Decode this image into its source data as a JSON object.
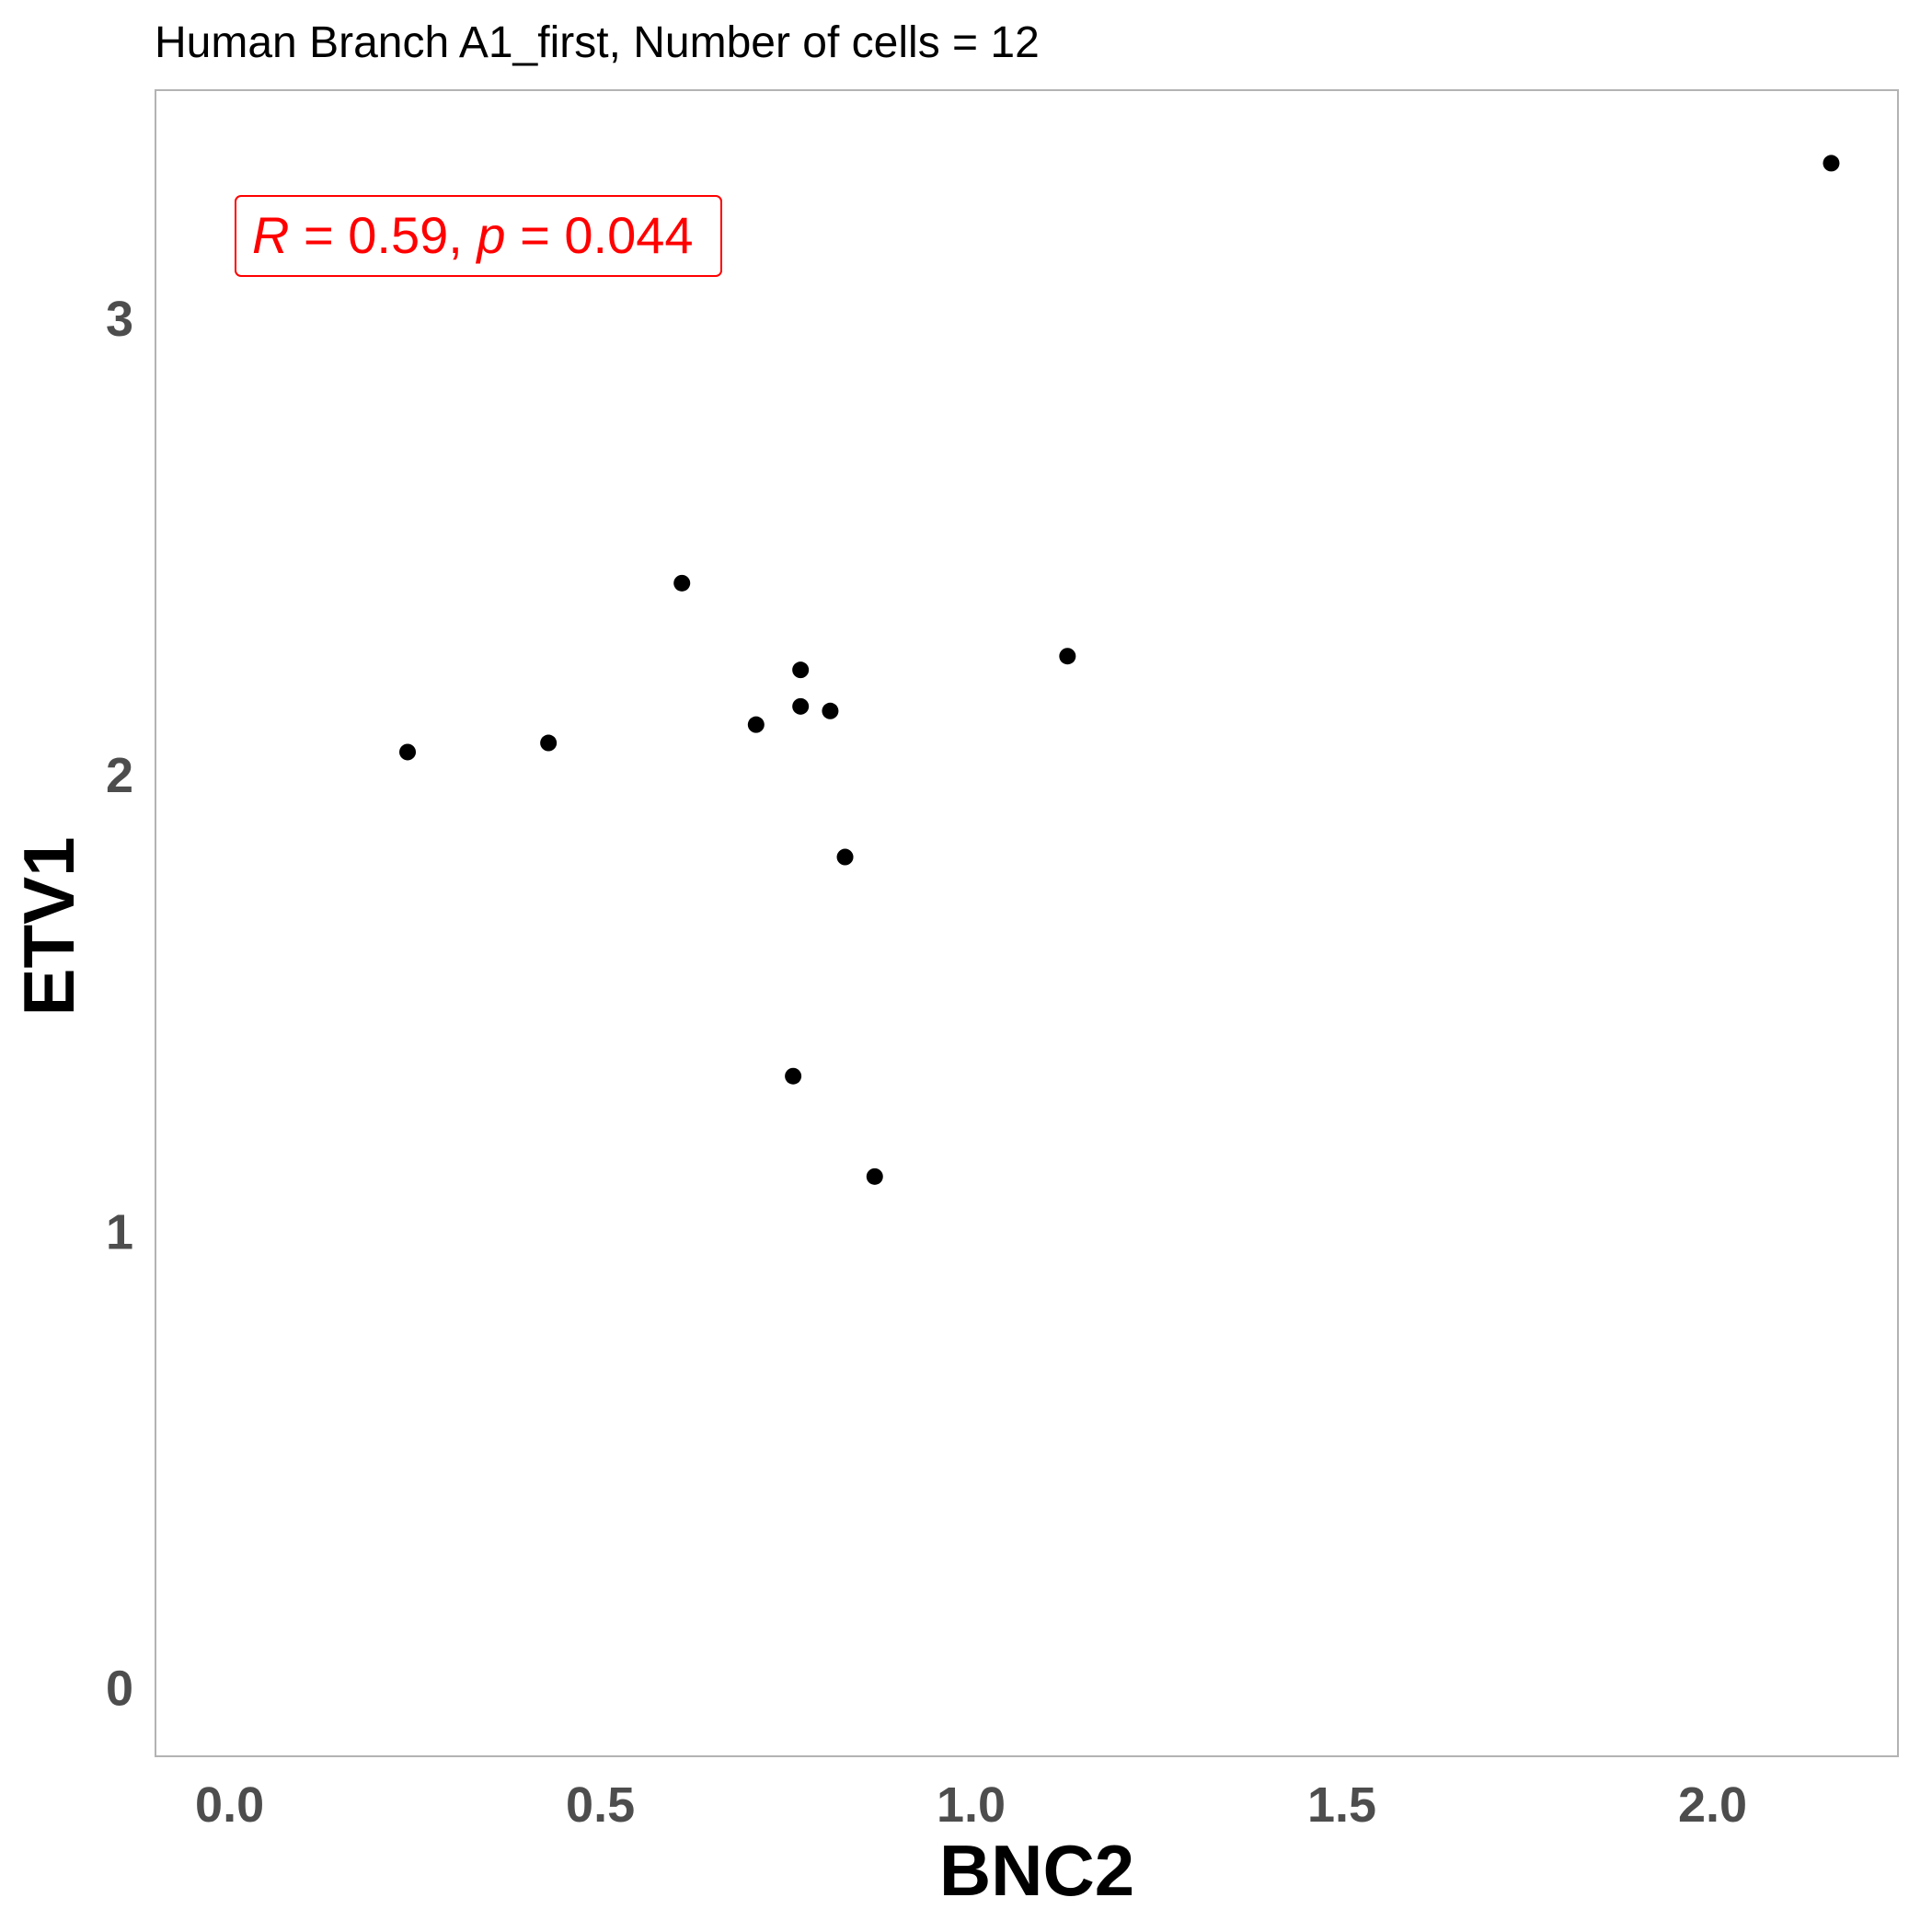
{
  "chart_data": {
    "type": "scatter",
    "title": "Human Branch A1_first, Number of cells = 12",
    "xlabel": "BNC2",
    "ylabel": "ETV1",
    "xlim": [
      -0.1,
      2.25
    ],
    "ylim": [
      -0.15,
      3.5
    ],
    "xticks": [
      0.0,
      0.5,
      1.0,
      1.5,
      2.0
    ],
    "xtick_labels": [
      "0.0",
      "0.5",
      "1.0",
      "1.5",
      "2.0"
    ],
    "yticks": [
      0,
      1,
      2,
      3
    ],
    "ytick_labels": [
      "0",
      "1",
      "2",
      "3"
    ],
    "grid": false,
    "point_color": "#000000",
    "border_color": "#b3b3b3",
    "points": [
      {
        "x": 0.24,
        "y": 2.05
      },
      {
        "x": 0.43,
        "y": 2.07
      },
      {
        "x": 0.61,
        "y": 2.42
      },
      {
        "x": 0.71,
        "y": 2.11
      },
      {
        "x": 0.76,
        "y": 1.34
      },
      {
        "x": 0.77,
        "y": 2.23
      },
      {
        "x": 0.77,
        "y": 2.15
      },
      {
        "x": 0.81,
        "y": 2.14
      },
      {
        "x": 0.83,
        "y": 1.82
      },
      {
        "x": 0.87,
        "y": 1.12
      },
      {
        "x": 1.13,
        "y": 2.26
      },
      {
        "x": 2.16,
        "y": 3.34
      }
    ],
    "annotation": {
      "r_symbol": "R",
      "r_value": "= 0.59,",
      "p_symbol": "p",
      "p_value": "= 0.044",
      "color": "#ff0000"
    }
  }
}
